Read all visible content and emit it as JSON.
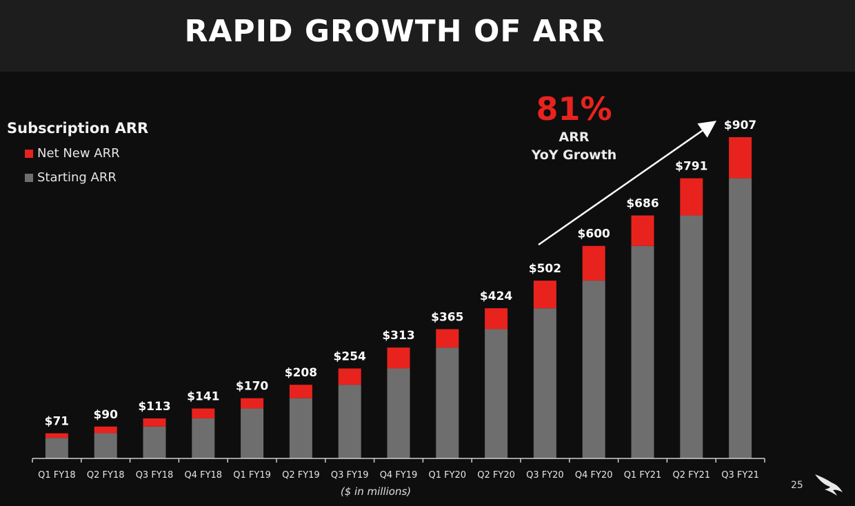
{
  "title": "RAPID GROWTH OF ARR",
  "legend": {
    "title": "Subscription ARR",
    "items": [
      {
        "label": "Net New ARR",
        "color": "#e8231e"
      },
      {
        "label": "Starting ARR",
        "color": "#6e6e6e"
      }
    ]
  },
  "growth": {
    "value": "81%",
    "label_line1": "ARR",
    "label_line2": "YoY Growth"
  },
  "unit_note": "($ in millions)",
  "page_number": "25",
  "chart_data": {
    "type": "bar",
    "stacked": true,
    "categories": [
      "Q1 FY18",
      "Q2 FY18",
      "Q3 FY18",
      "Q4 FY18",
      "Q1 FY19",
      "Q2 FY19",
      "Q3 FY19",
      "Q4 FY19",
      "Q1 FY20",
      "Q2 FY20",
      "Q3 FY20",
      "Q4 FY20",
      "Q1 FY21",
      "Q2 FY21",
      "Q3 FY21"
    ],
    "series": [
      {
        "name": "Starting ARR",
        "color": "#6e6e6e",
        "values": [
          58,
          71,
          90,
          113,
          141,
          170,
          208,
          254,
          313,
          365,
          424,
          502,
          600,
          686,
          791
        ]
      },
      {
        "name": "Net New ARR",
        "color": "#e8231e",
        "values": [
          13,
          19,
          23,
          28,
          29,
          38,
          46,
          59,
          52,
          59,
          78,
          98,
          86,
          105,
          116
        ]
      }
    ],
    "totals": [
      71,
      90,
      113,
      141,
      170,
      208,
      254,
      313,
      365,
      424,
      502,
      600,
      686,
      791,
      907
    ],
    "total_labels": [
      "$71",
      "$90",
      "$113",
      "$141",
      "$170",
      "$208",
      "$254",
      "$313",
      "$365",
      "$424",
      "$502",
      "$600",
      "$686",
      "$791",
      "$907"
    ],
    "ylim": [
      0,
      907
    ],
    "grid": false,
    "legend_position": "top-left"
  }
}
